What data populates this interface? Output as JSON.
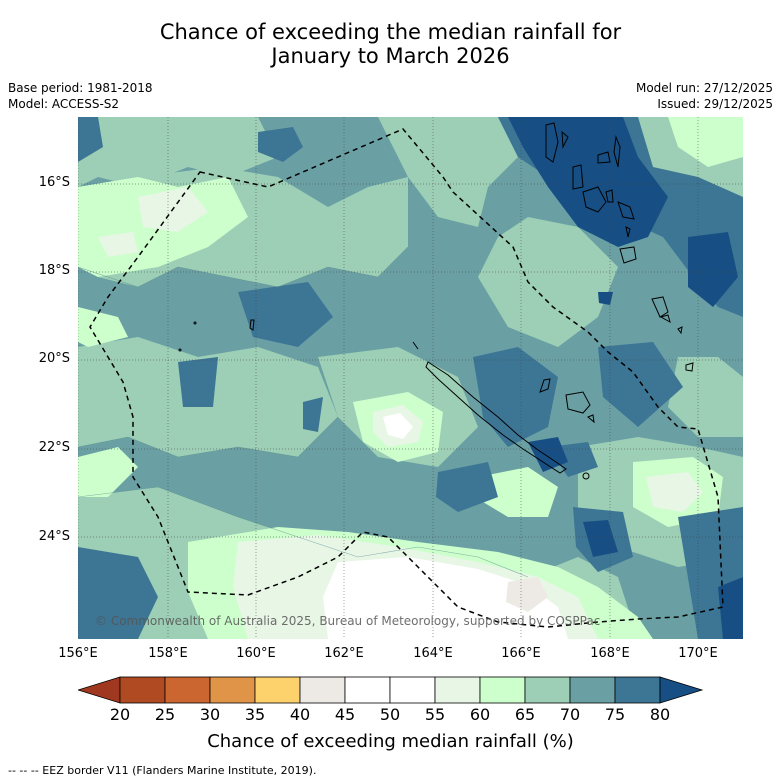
{
  "title_line1": "Chance of exceeding the median rainfall for",
  "title_line2": "January to March 2026",
  "base_period": "Base period: 1981-2018",
  "model": "Model: ACCESS-S2",
  "model_run": "Model run: 27/12/2025",
  "issued": "Issued: 29/12/2025",
  "copyright": "© Commonwealth of Australia 2025, Bureau of Meteorology, supported by COSPPac",
  "lat_labels": [
    "16°S",
    "18°S",
    "20°S",
    "22°S",
    "24°S"
  ],
  "lon_labels": [
    "156°E",
    "158°E",
    "160°E",
    "162°E",
    "164°E",
    "166°E",
    "168°E",
    "170°E"
  ],
  "colorbar": {
    "ticks": [
      "20",
      "25",
      "30",
      "35",
      "40",
      "45",
      "50",
      "55",
      "60",
      "65",
      "70",
      "75",
      "80"
    ],
    "colors": [
      "#a0381f",
      "#b04a22",
      "#cc6630",
      "#e09448",
      "#fdd26c",
      "#ede9e5",
      "#ffffff",
      "#ffffff",
      "#e8f6e6",
      "#ccffcc",
      "#9ccfb5",
      "#6aa0a4",
      "#3d7595",
      "#174f85"
    ],
    "title": "Chance of exceeding median rainfall (%)"
  },
  "footnote": "--  --  -- EEZ border V11 (Flanders Marine Institute, 2019)."
}
